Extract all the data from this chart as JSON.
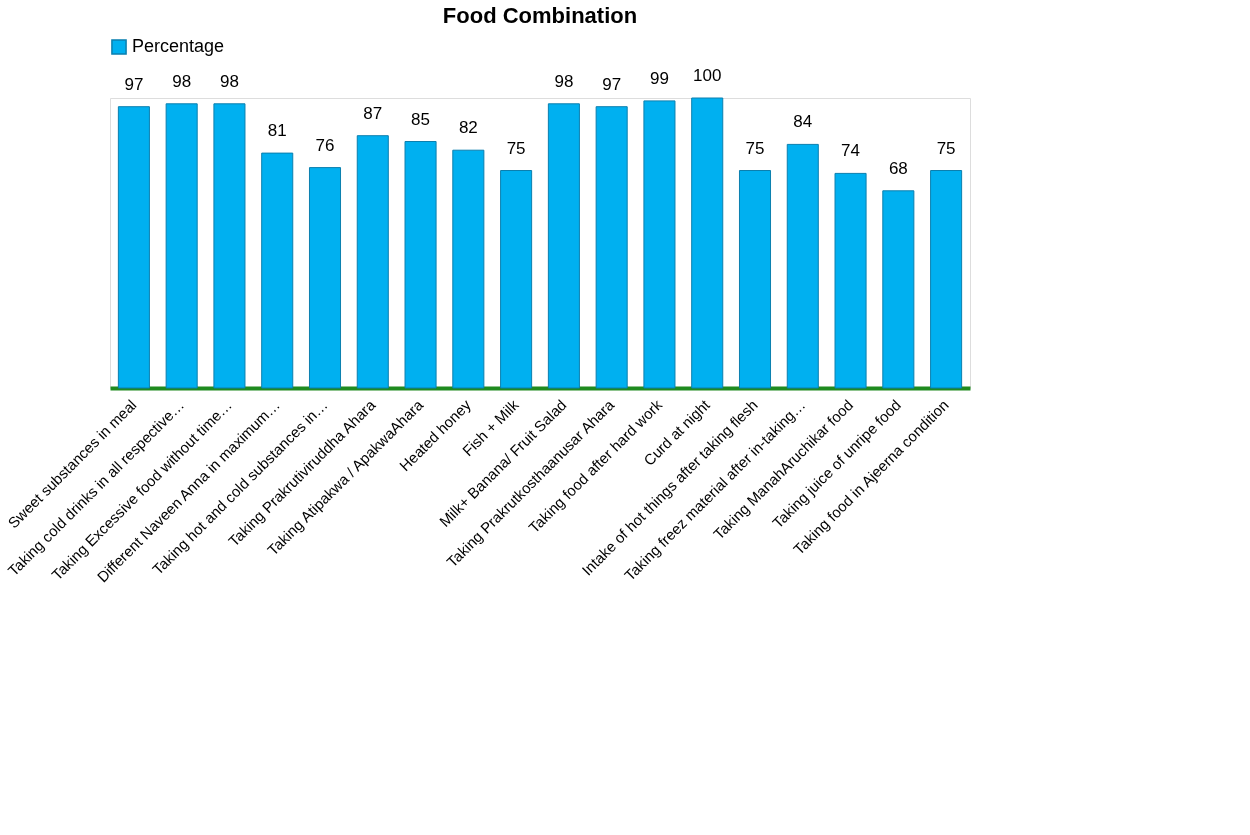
{
  "chart_data": {
    "type": "bar",
    "title": "Food Combination",
    "categories": [
      "Sweet substances in meal",
      "Taking cold drinks in all respective…",
      "Taking Excessive food without time…",
      "Different Naveen Anna in maximum…",
      "Taking hot and cold substances in…",
      "Taking Prakrutiviruddha Ahara",
      "Taking Atipakwa / ApakwaAhara",
      "Heated honey",
      "Fish + Milk",
      "Milk+ Banana/ Fruit Salad",
      "Taking Prakrutkosthaanusar Ahara",
      "Taking food after hard work",
      "Curd at night",
      "Intake of hot things after taking flesh",
      "Taking freez material after in-taking…",
      "Taking ManahAruchikar food",
      "Taking juice of unripe food",
      "Taking food in Ajeerna condition"
    ],
    "series": [
      {
        "name": "Percentage",
        "color": "#00b0f0",
        "values": [
          97,
          98,
          98,
          81,
          76,
          87,
          85,
          82,
          75,
          98,
          97,
          99,
          100,
          75,
          84,
          74,
          68,
          75
        ]
      }
    ],
    "data_labels": true,
    "legend": "top",
    "grid": false
  }
}
